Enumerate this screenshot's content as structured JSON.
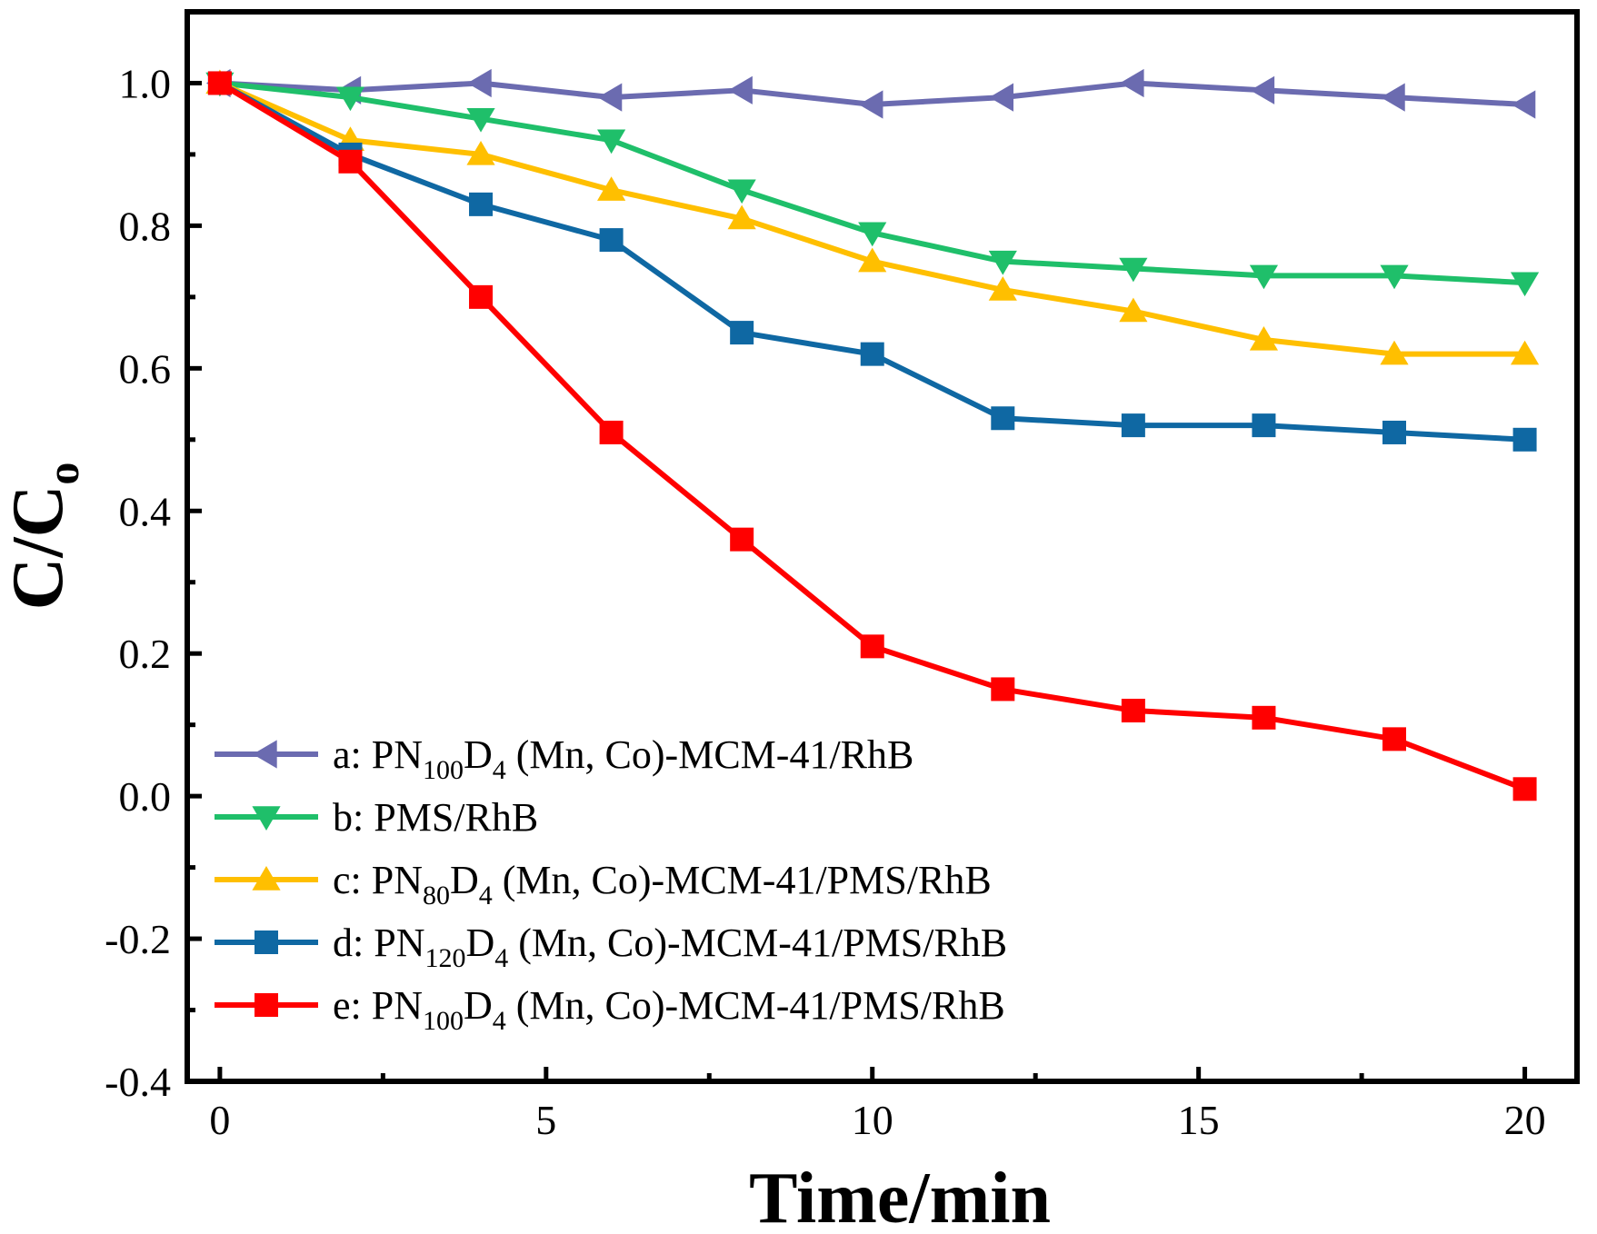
{
  "chart_data": {
    "type": "line",
    "title": "",
    "xlabel": "Time/min",
    "ylabel": "C/C",
    "ylabel_sub": "o",
    "xlim": [
      -0.5,
      20.8
    ],
    "ylim": [
      -0.4,
      1.1
    ],
    "xticks": [
      0,
      5,
      10,
      15,
      20
    ],
    "xtick_labels": [
      "0",
      "5",
      "10",
      "15",
      "20"
    ],
    "yticks": [
      -0.4,
      -0.2,
      0.0,
      0.2,
      0.4,
      0.6,
      0.8,
      1.0
    ],
    "ytick_labels": [
      "-0.4",
      "-0.2",
      "0.0",
      "0.2",
      "0.4",
      "0.6",
      "0.8",
      "1.0"
    ],
    "legend_position": "bottom-left",
    "x": [
      0,
      2,
      4,
      6,
      8,
      10,
      12,
      14,
      16,
      18,
      20
    ],
    "series": [
      {
        "id": "a",
        "name": "a: PN100D4 (Mn, Co)-MCM-41/RhB",
        "label": [
          {
            "t": "a: PN",
            "sub": false
          },
          {
            "t": "100",
            "sub": true
          },
          {
            "t": "D",
            "sub": false
          },
          {
            "t": "4",
            "sub": true
          },
          {
            "t": " (Mn, Co)-MCM-41/RhB",
            "sub": false
          }
        ],
        "color": "#6b6bb0",
        "marker": "triangle-left",
        "values": [
          1.0,
          0.99,
          1.0,
          0.98,
          0.99,
          0.97,
          0.98,
          1.0,
          0.99,
          0.98,
          0.97
        ]
      },
      {
        "id": "b",
        "name": "b: PMS/RhB",
        "label": [
          {
            "t": "b: PMS/RhB",
            "sub": false
          }
        ],
        "color": "#1fbf6a",
        "marker": "triangle-down",
        "values": [
          1.0,
          0.98,
          0.95,
          0.92,
          0.85,
          0.79,
          0.75,
          0.74,
          0.73,
          0.73,
          0.72
        ]
      },
      {
        "id": "c",
        "name": "c: PN80D4 (Mn, Co)-MCM-41/PMS/RhB",
        "label": [
          {
            "t": "c: PN",
            "sub": false
          },
          {
            "t": "80",
            "sub": true
          },
          {
            "t": "D",
            "sub": false
          },
          {
            "t": "4",
            "sub": true
          },
          {
            "t": " (Mn, Co)-MCM-41/PMS/RhB",
            "sub": false
          }
        ],
        "color": "#ffbf00",
        "marker": "triangle-up",
        "values": [
          1.0,
          0.92,
          0.9,
          0.85,
          0.81,
          0.75,
          0.71,
          0.68,
          0.64,
          0.62,
          0.62
        ]
      },
      {
        "id": "d",
        "name": "d: PN120D4 (Mn, Co)-MCM-41/PMS/RhB",
        "label": [
          {
            "t": "d: PN",
            "sub": false
          },
          {
            "t": "120",
            "sub": true
          },
          {
            "t": "D",
            "sub": false
          },
          {
            "t": "4",
            "sub": true
          },
          {
            "t": " (Mn, Co)-MCM-41/PMS/RhB",
            "sub": false
          }
        ],
        "color": "#0f68a3",
        "marker": "square",
        "values": [
          1.0,
          0.9,
          0.83,
          0.78,
          0.65,
          0.62,
          0.53,
          0.52,
          0.52,
          0.51,
          0.5
        ]
      },
      {
        "id": "e",
        "name": "e: PN100D4 (Mn, Co)-MCM-41/PMS/RhB",
        "label": [
          {
            "t": "e: PN",
            "sub": false
          },
          {
            "t": "100",
            "sub": true
          },
          {
            "t": "D",
            "sub": false
          },
          {
            "t": "4",
            "sub": true
          },
          {
            "t": " (Mn, Co)-MCM-41/PMS/RhB",
            "sub": false
          }
        ],
        "color": "#ff0000",
        "marker": "square",
        "values": [
          1.0,
          0.89,
          0.7,
          0.51,
          0.36,
          0.21,
          0.15,
          0.12,
          0.11,
          0.08,
          0.01
        ]
      }
    ]
  }
}
